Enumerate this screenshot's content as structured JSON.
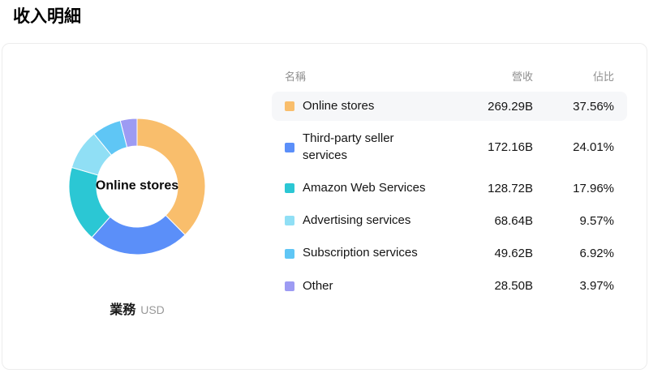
{
  "page_title": "收入明細",
  "donut": {
    "center_label": "Online stores",
    "legend_label": "業務",
    "legend_unit": "USD"
  },
  "table": {
    "headers": {
      "name": "名稱",
      "revenue": "營收",
      "share": "佔比"
    },
    "rows": [
      {
        "name": "Online stores",
        "revenue": "269.29B",
        "share": "37.56%",
        "color": "#F9BE6C"
      },
      {
        "name": "Third-party seller services",
        "revenue": "172.16B",
        "share": "24.01%",
        "color": "#5B8FF9"
      },
      {
        "name": "Amazon Web Services",
        "revenue": "128.72B",
        "share": "17.96%",
        "color": "#2BC7D4"
      },
      {
        "name": "Advertising services",
        "revenue": "68.64B",
        "share": "9.57%",
        "color": "#90DFF5"
      },
      {
        "name": "Subscription services",
        "revenue": "49.62B",
        "share": "6.92%",
        "color": "#5FC6F5"
      },
      {
        "name": "Other",
        "revenue": "28.50B",
        "share": "3.97%",
        "color": "#9D9BF3"
      }
    ]
  },
  "chart_data": {
    "type": "pie",
    "title": "收入明細",
    "unit": "USD",
    "categories": [
      "Online stores",
      "Third-party seller services",
      "Amazon Web Services",
      "Advertising services",
      "Subscription services",
      "Other"
    ],
    "values": [
      269.29,
      172.16,
      128.72,
      68.64,
      49.62,
      28.5
    ],
    "percents": [
      37.56,
      24.01,
      17.96,
      9.57,
      6.92,
      3.97
    ],
    "colors": [
      "#F9BE6C",
      "#5B8FF9",
      "#2BC7D4",
      "#90DFF5",
      "#5FC6F5",
      "#9D9BF3"
    ],
    "inner_radius_ratio": 0.6,
    "start_angle_deg": 0,
    "legend_position": "table-right"
  }
}
